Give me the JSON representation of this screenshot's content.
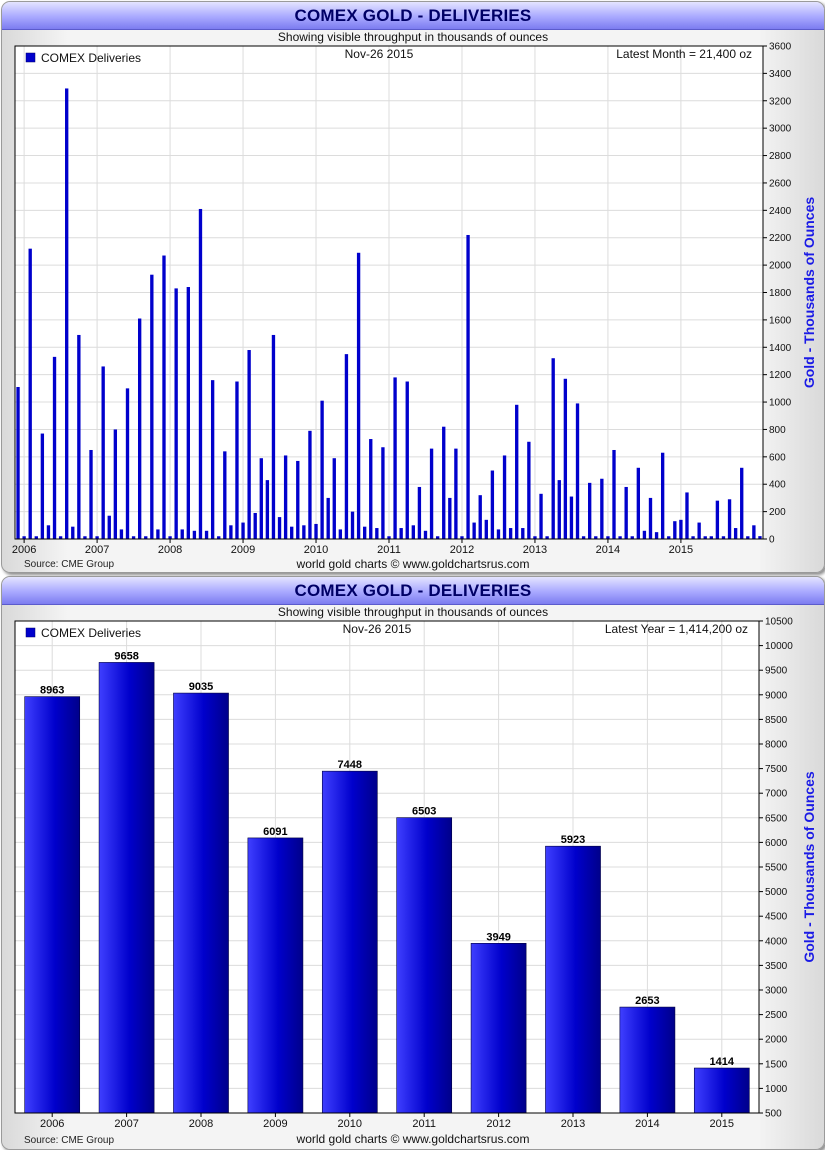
{
  "chart_data": [
    {
      "type": "bar",
      "title": "COMEX GOLD - DELIVERIES",
      "subtitle": "Showing visible throughput in thousands of ounces",
      "legend": "COMEX Deliveries",
      "date_label": "Nov-26  2015",
      "latest_label": "Latest Month = 21,400 oz",
      "ylabel": "Gold - Thousands of Ounces",
      "ylim": [
        0,
        3600
      ],
      "yticks": [
        0,
        200,
        400,
        600,
        800,
        1000,
        1200,
        1400,
        1600,
        1800,
        2000,
        2200,
        2400,
        2600,
        2800,
        3000,
        3200,
        3400,
        3600
      ],
      "x_labels": [
        "2006",
        "2007",
        "2008",
        "2009",
        "2010",
        "2011",
        "2012",
        "2013",
        "2014",
        "2015"
      ],
      "start": "2005-12",
      "values": [
        1110,
        20,
        2120,
        20,
        770,
        100,
        1330,
        20,
        3290,
        90,
        1490,
        20,
        650,
        20,
        1260,
        170,
        800,
        70,
        1100,
        20,
        1610,
        20,
        1930,
        70,
        2070,
        20,
        1830,
        70,
        1840,
        60,
        2410,
        60,
        1160,
        20,
        640,
        100,
        1150,
        120,
        1380,
        190,
        590,
        430,
        1490,
        160,
        610,
        90,
        570,
        100,
        790,
        110,
        1010,
        300,
        590,
        70,
        1350,
        200,
        2090,
        90,
        730,
        80,
        670,
        20,
        1180,
        80,
        1150,
        100,
        380,
        60,
        660,
        20,
        820,
        300,
        660,
        20,
        2220,
        120,
        320,
        140,
        500,
        70,
        610,
        80,
        980,
        80,
        710,
        20,
        330,
        20,
        1320,
        430,
        1170,
        310,
        990,
        20,
        410,
        20,
        440,
        20,
        650,
        20,
        380,
        20,
        520,
        60,
        300,
        50,
        630,
        20,
        130,
        140,
        340,
        20,
        120,
        20,
        20,
        280,
        20,
        290,
        80,
        520,
        20,
        100,
        21
      ]
    },
    {
      "type": "bar",
      "title": "COMEX GOLD - DELIVERIES",
      "subtitle": "Showing visible throughput in thousands of ounces",
      "legend": "COMEX Deliveries",
      "date_label": "Nov-26  2015",
      "latest_label": "Latest Year = 1,414,200 oz",
      "ylabel": "Gold - Thousands of Ounces",
      "ylim": [
        500,
        10500
      ],
      "yticks": [
        500,
        1000,
        1500,
        2000,
        2500,
        3000,
        3500,
        4000,
        4500,
        5000,
        5500,
        6000,
        6500,
        7000,
        7500,
        8000,
        8500,
        9000,
        9500,
        10000,
        10500
      ],
      "categories": [
        "2006",
        "2007",
        "2008",
        "2009",
        "2010",
        "2011",
        "2012",
        "2013",
        "2014",
        "2015"
      ],
      "values": [
        8963,
        9658,
        9035,
        6091,
        7448,
        6503,
        3949,
        5923,
        2653,
        1414
      ]
    }
  ],
  "footer": {
    "source": "Source: CME Group",
    "credit": "world gold charts © www.goldchartsrus.com"
  },
  "colors": {
    "bar": "#0000cc",
    "bar_light": "#3f3fff",
    "bar_dark": "#00008a",
    "grid": "#dcdcdc"
  }
}
